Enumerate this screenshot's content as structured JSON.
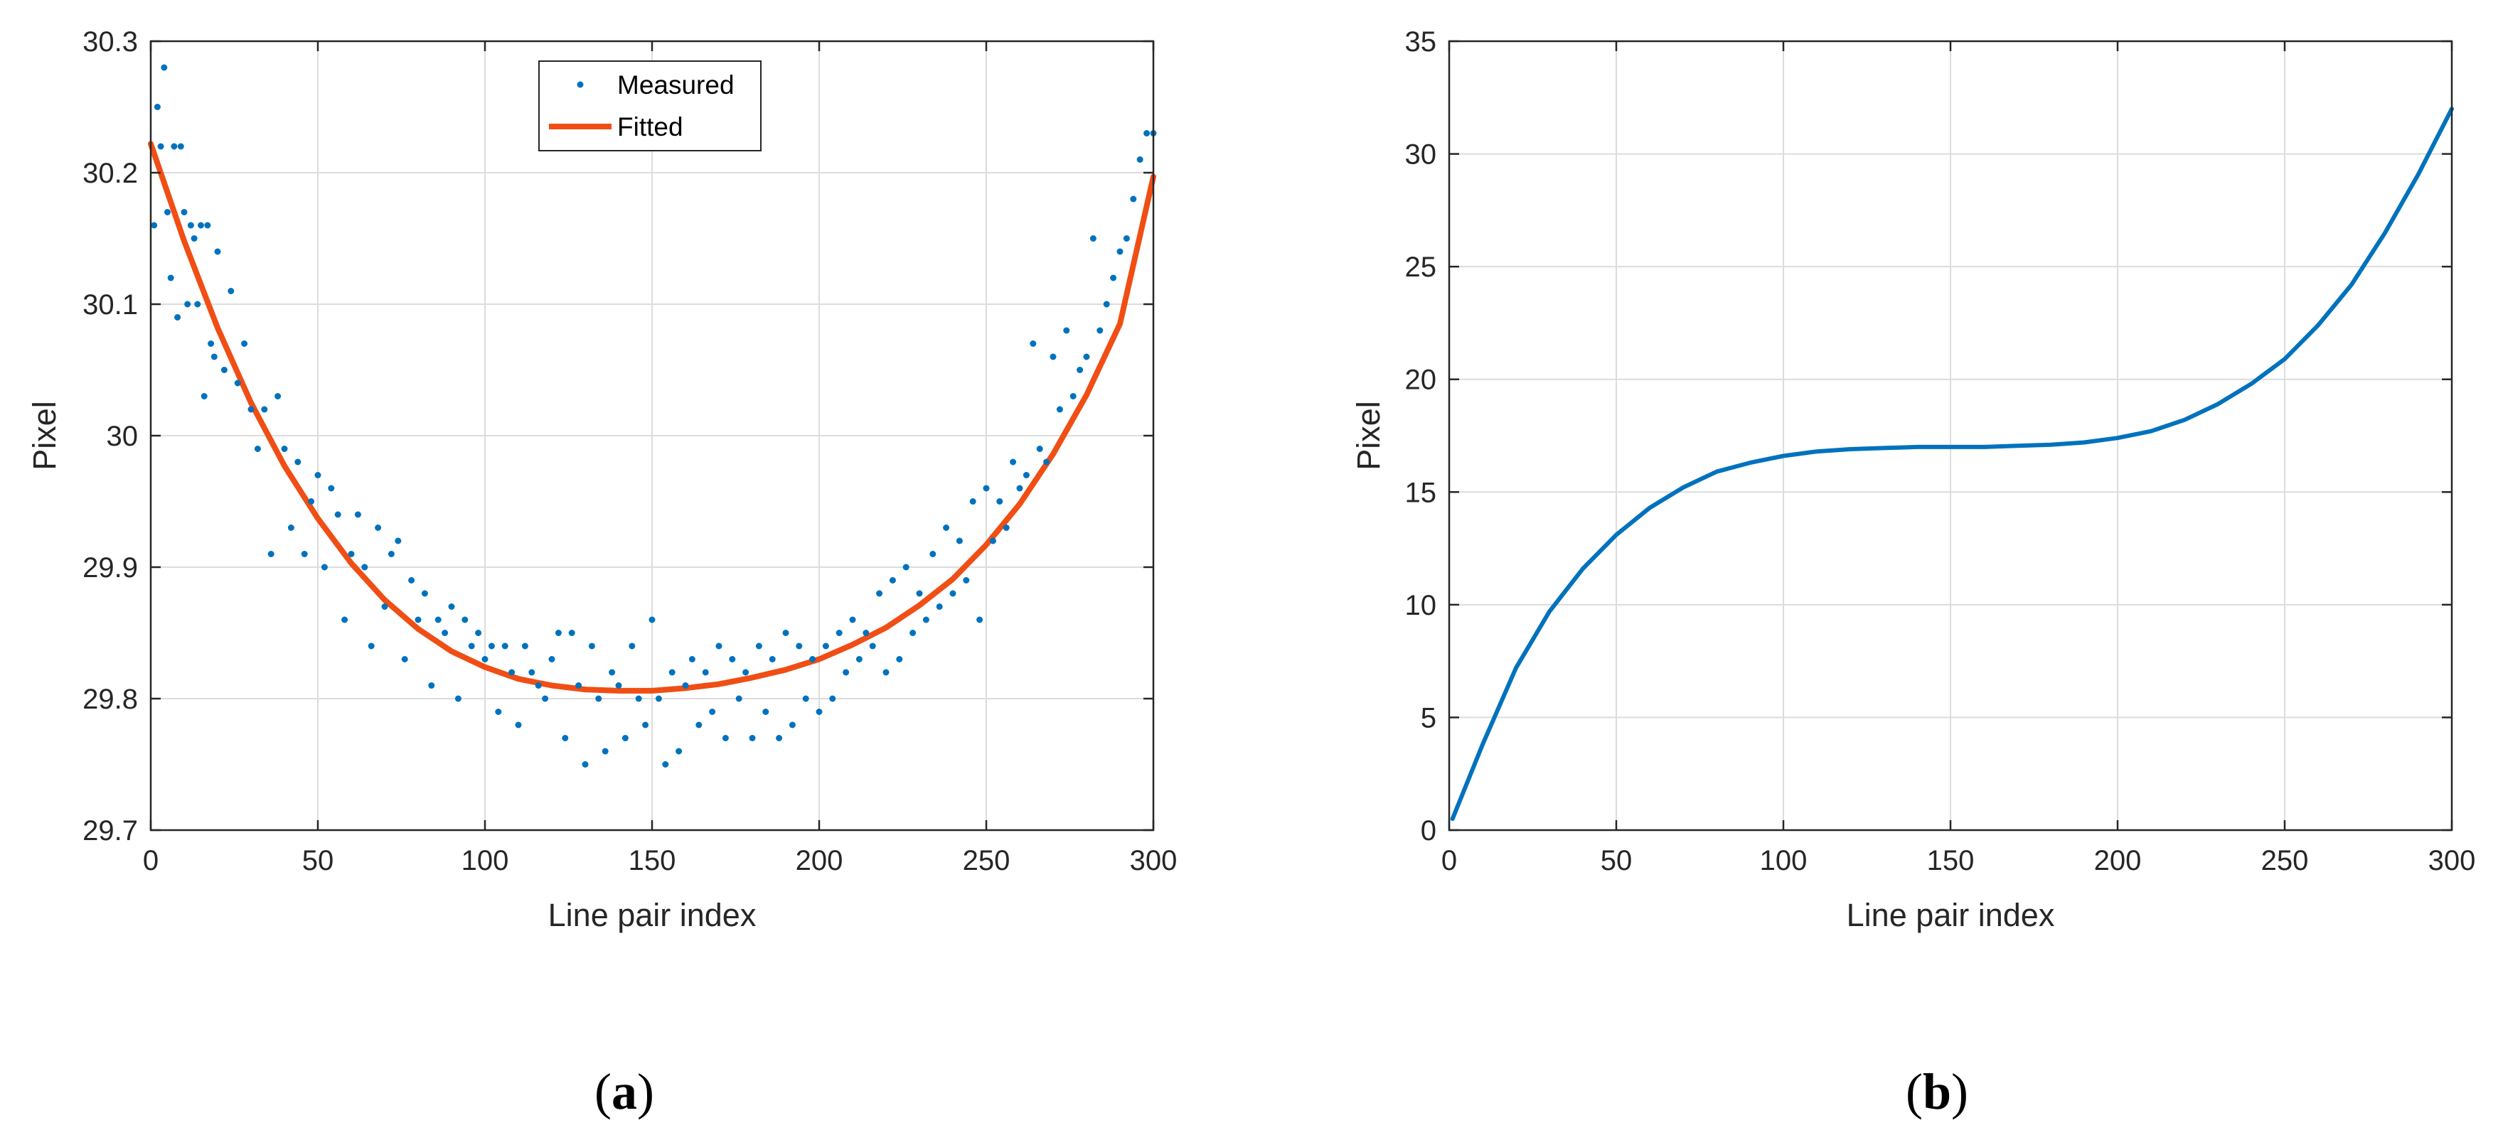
{
  "chart_data": [
    {
      "type": "scatter",
      "xlabel": "Line pair index",
      "ylabel": "Pixel",
      "xlim": [
        0,
        300
      ],
      "ylim": [
        29.7,
        30.3
      ],
      "xticks": [
        0,
        50,
        100,
        150,
        200,
        250,
        300
      ],
      "yticks": [
        29.7,
        29.8,
        29.9,
        30,
        30.1,
        30.2,
        30.3
      ],
      "ytick_labels": [
        "29.7",
        "29.8",
        "29.9",
        "30",
        "30.1",
        "30.2",
        "30.3"
      ],
      "grid": true,
      "legend_position": "top-center",
      "panel_label": "a",
      "colors": {
        "measured": "#0072BD",
        "fitted": "#F04E14"
      },
      "series": [
        {
          "name": "Measured",
          "kind": "points",
          "x": [
            1,
            2,
            3,
            4,
            5,
            6,
            7,
            8,
            9,
            10,
            11,
            12,
            13,
            14,
            15,
            16,
            17,
            18,
            19,
            20,
            22,
            24,
            26,
            28,
            30,
            32,
            34,
            36,
            38,
            40,
            42,
            44,
            46,
            48,
            50,
            52,
            54,
            56,
            58,
            60,
            62,
            64,
            66,
            68,
            70,
            72,
            74,
            76,
            78,
            80,
            82,
            84,
            86,
            88,
            90,
            92,
            94,
            96,
            98,
            100,
            102,
            104,
            106,
            108,
            110,
            112,
            114,
            116,
            118,
            120,
            122,
            124,
            126,
            128,
            130,
            132,
            134,
            136,
            138,
            140,
            142,
            144,
            146,
            148,
            150,
            152,
            154,
            156,
            158,
            160,
            162,
            164,
            166,
            168,
            170,
            172,
            174,
            176,
            178,
            180,
            182,
            184,
            186,
            188,
            190,
            192,
            194,
            196,
            198,
            200,
            202,
            204,
            206,
            208,
            210,
            212,
            214,
            216,
            218,
            220,
            222,
            224,
            226,
            228,
            230,
            232,
            234,
            236,
            238,
            240,
            242,
            244,
            246,
            248,
            250,
            252,
            254,
            256,
            258,
            260,
            262,
            264,
            266,
            268,
            270,
            272,
            274,
            276,
            278,
            280,
            282,
            284,
            286,
            288,
            290,
            292,
            294,
            296,
            298,
            300
          ],
          "y": [
            30.16,
            30.25,
            30.22,
            30.28,
            30.17,
            30.12,
            30.22,
            30.09,
            30.22,
            30.17,
            30.1,
            30.16,
            30.15,
            30.1,
            30.16,
            30.03,
            30.16,
            30.07,
            30.06,
            30.14,
            30.05,
            30.11,
            30.04,
            30.07,
            30.02,
            29.99,
            30.02,
            29.91,
            30.03,
            29.99,
            29.93,
            29.98,
            29.91,
            29.95,
            29.97,
            29.9,
            29.96,
            29.94,
            29.86,
            29.91,
            29.94,
            29.9,
            29.84,
            29.93,
            29.87,
            29.91,
            29.92,
            29.83,
            29.89,
            29.86,
            29.88,
            29.81,
            29.86,
            29.85,
            29.87,
            29.8,
            29.86,
            29.84,
            29.85,
            29.83,
            29.84,
            29.79,
            29.84,
            29.82,
            29.78,
            29.84,
            29.82,
            29.81,
            29.8,
            29.83,
            29.85,
            29.77,
            29.85,
            29.81,
            29.75,
            29.84,
            29.8,
            29.76,
            29.82,
            29.81,
            29.77,
            29.84,
            29.8,
            29.78,
            29.86,
            29.8,
            29.75,
            29.82,
            29.76,
            29.81,
            29.83,
            29.78,
            29.82,
            29.79,
            29.84,
            29.77,
            29.83,
            29.8,
            29.82,
            29.77,
            29.84,
            29.79,
            29.83,
            29.77,
            29.85,
            29.78,
            29.84,
            29.8,
            29.83,
            29.79,
            29.84,
            29.8,
            29.85,
            29.82,
            29.86,
            29.83,
            29.85,
            29.84,
            29.88,
            29.82,
            29.89,
            29.83,
            29.9,
            29.85,
            29.88,
            29.86,
            29.91,
            29.87,
            29.93,
            29.88,
            29.92,
            29.89,
            29.95,
            29.86,
            29.96,
            29.92,
            29.95,
            29.93,
            29.98,
            29.96,
            29.97,
            30.07,
            29.99,
            29.98,
            30.06,
            30.02,
            30.08,
            30.03,
            30.05,
            30.06,
            30.15,
            30.08,
            30.1,
            30.12,
            30.14,
            30.15,
            30.18,
            30.21,
            30.23,
            30.23
          ]
        },
        {
          "name": "Fitted",
          "kind": "line",
          "x": [
            0,
            10,
            20,
            30,
            40,
            50,
            60,
            70,
            80,
            90,
            100,
            110,
            120,
            130,
            140,
            150,
            160,
            170,
            180,
            190,
            200,
            210,
            220,
            230,
            240,
            250,
            260,
            270,
            280,
            290,
            300
          ],
          "y": [
            30.222,
            30.148,
            30.082,
            30.025,
            29.977,
            29.937,
            29.903,
            29.875,
            29.853,
            29.836,
            29.824,
            29.815,
            29.81,
            29.807,
            29.806,
            29.806,
            29.808,
            29.811,
            29.816,
            29.822,
            29.83,
            29.841,
            29.854,
            29.871,
            29.891,
            29.917,
            29.948,
            29.986,
            30.031,
            30.085,
            30.197
          ]
        }
      ]
    },
    {
      "type": "line",
      "xlabel": "Line pair index",
      "ylabel": "Pixel",
      "xlim": [
        0,
        300
      ],
      "ylim": [
        0,
        35
      ],
      "xticks": [
        0,
        50,
        100,
        150,
        200,
        250,
        300
      ],
      "yticks": [
        0,
        5,
        10,
        15,
        20,
        25,
        30,
        35
      ],
      "ytick_labels": [
        "0",
        "5",
        "10",
        "15",
        "20",
        "25",
        "30",
        "35"
      ],
      "grid": true,
      "panel_label": "b",
      "colors": {
        "line": "#0072BD"
      },
      "series": [
        {
          "x": [
            1,
            10,
            20,
            30,
            40,
            50,
            60,
            70,
            80,
            90,
            100,
            110,
            120,
            130,
            140,
            150,
            160,
            170,
            180,
            190,
            200,
            210,
            220,
            230,
            240,
            250,
            260,
            270,
            280,
            290,
            300
          ],
          "y": [
            0.5,
            3.8,
            7.2,
            9.7,
            11.6,
            13.1,
            14.3,
            15.2,
            15.9,
            16.3,
            16.6,
            16.8,
            16.9,
            16.95,
            17.0,
            17.0,
            17.0,
            17.05,
            17.1,
            17.2,
            17.4,
            17.7,
            18.2,
            18.9,
            19.8,
            20.9,
            22.4,
            24.2,
            26.5,
            29.1,
            32.0
          ]
        }
      ]
    }
  ],
  "legend": {
    "measured_label": "Measured",
    "fitted_label": "Fitted"
  },
  "panel_labels": {
    "a": {
      "open": "(",
      "letter": "a",
      "close": ")"
    },
    "b": {
      "open": "(",
      "letter": "b",
      "close": ")"
    }
  }
}
